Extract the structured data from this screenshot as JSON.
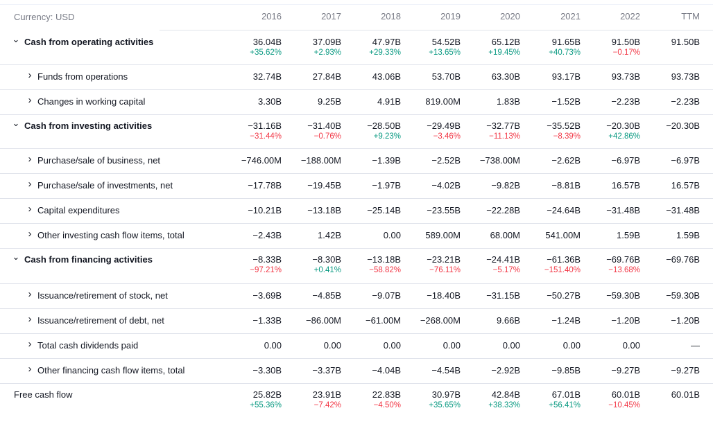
{
  "currency_label": "Currency: USD",
  "columns": [
    "2016",
    "2017",
    "2018",
    "2019",
    "2020",
    "2021",
    "2022",
    "TTM"
  ],
  "rows": [
    {
      "label": "Cash from operating activities",
      "type": "section",
      "expanded": true,
      "values": [
        "36.04B",
        "37.09B",
        "47.97B",
        "54.52B",
        "65.12B",
        "91.65B",
        "91.50B",
        "91.50B"
      ],
      "changes": [
        "+35.62%",
        "+2.93%",
        "+29.33%",
        "+13.65%",
        "+19.45%",
        "+40.73%",
        "−0.17%",
        ""
      ]
    },
    {
      "label": "Funds from operations",
      "type": "child",
      "expanded": false,
      "values": [
        "32.74B",
        "27.84B",
        "43.06B",
        "53.70B",
        "63.30B",
        "93.17B",
        "93.73B",
        "93.73B"
      ]
    },
    {
      "label": "Changes in working capital",
      "type": "child",
      "expanded": false,
      "values": [
        "3.30B",
        "9.25B",
        "4.91B",
        "819.00M",
        "1.83B",
        "−1.52B",
        "−2.23B",
        "−2.23B"
      ]
    },
    {
      "label": "Cash from investing activities",
      "type": "section",
      "expanded": true,
      "values": [
        "−31.16B",
        "−31.40B",
        "−28.50B",
        "−29.49B",
        "−32.77B",
        "−35.52B",
        "−20.30B",
        "−20.30B"
      ],
      "changes": [
        "−31.44%",
        "−0.76%",
        "+9.23%",
        "−3.46%",
        "−11.13%",
        "−8.39%",
        "+42.86%",
        ""
      ]
    },
    {
      "label": "Purchase/sale of business, net",
      "type": "child",
      "expanded": false,
      "values": [
        "−746.00M",
        "−188.00M",
        "−1.39B",
        "−2.52B",
        "−738.00M",
        "−2.62B",
        "−6.97B",
        "−6.97B"
      ]
    },
    {
      "label": "Purchase/sale of investments, net",
      "type": "child",
      "expanded": false,
      "values": [
        "−17.78B",
        "−19.45B",
        "−1.97B",
        "−4.02B",
        "−9.82B",
        "−8.81B",
        "16.57B",
        "16.57B"
      ]
    },
    {
      "label": "Capital expenditures",
      "type": "child",
      "expanded": false,
      "values": [
        "−10.21B",
        "−13.18B",
        "−25.14B",
        "−23.55B",
        "−22.28B",
        "−24.64B",
        "−31.48B",
        "−31.48B"
      ]
    },
    {
      "label": "Other investing cash flow items, total",
      "type": "child",
      "expanded": false,
      "values": [
        "−2.43B",
        "1.42B",
        "0.00",
        "589.00M",
        "68.00M",
        "541.00M",
        "1.59B",
        "1.59B"
      ]
    },
    {
      "label": "Cash from financing activities",
      "type": "section",
      "expanded": true,
      "values": [
        "−8.33B",
        "−8.30B",
        "−13.18B",
        "−23.21B",
        "−24.41B",
        "−61.36B",
        "−69.76B",
        "−69.76B"
      ],
      "changes": [
        "−97.21%",
        "+0.41%",
        "−58.82%",
        "−76.11%",
        "−5.17%",
        "−151.40%",
        "−13.68%",
        ""
      ]
    },
    {
      "label": "Issuance/retirement of stock, net",
      "type": "child",
      "expanded": false,
      "values": [
        "−3.69B",
        "−4.85B",
        "−9.07B",
        "−18.40B",
        "−31.15B",
        "−50.27B",
        "−59.30B",
        "−59.30B"
      ]
    },
    {
      "label": "Issuance/retirement of debt, net",
      "type": "child",
      "expanded": false,
      "values": [
        "−1.33B",
        "−86.00M",
        "−61.00M",
        "−268.00M",
        "9.66B",
        "−1.24B",
        "−1.20B",
        "−1.20B"
      ]
    },
    {
      "label": "Total cash dividends paid",
      "type": "child",
      "expanded": false,
      "values": [
        "0.00",
        "0.00",
        "0.00",
        "0.00",
        "0.00",
        "0.00",
        "0.00",
        "—"
      ]
    },
    {
      "label": "Other financing cash flow items, total",
      "type": "child",
      "expanded": false,
      "values": [
        "−3.30B",
        "−3.37B",
        "−4.04B",
        "−4.54B",
        "−2.92B",
        "−9.85B",
        "−9.27B",
        "−9.27B"
      ]
    },
    {
      "label": "Free cash flow",
      "type": "plain",
      "expanded": false,
      "values": [
        "25.82B",
        "23.91B",
        "22.83B",
        "30.97B",
        "42.84B",
        "67.01B",
        "60.01B",
        "60.01B"
      ],
      "changes": [
        "+55.36%",
        "−7.42%",
        "−4.50%",
        "+35.65%",
        "+38.33%",
        "+56.41%",
        "−10.45%",
        ""
      ]
    }
  ],
  "colors": {
    "positive": "#089981",
    "negative": "#f23645",
    "muted": "#787b86",
    "separator": "#e0e3eb"
  },
  "icons": {
    "expanded": "chevron-down-icon",
    "collapsed": "chevron-right-icon"
  }
}
